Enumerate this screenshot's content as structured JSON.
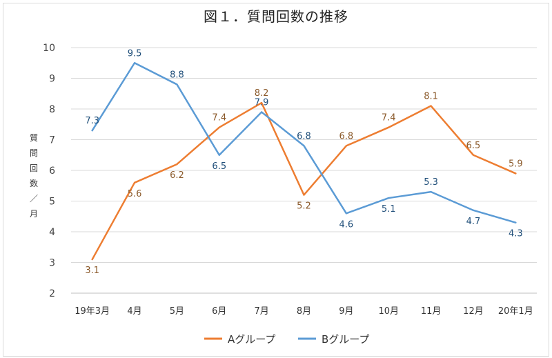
{
  "chart_data": {
    "type": "line",
    "title": "図１．質問回数の推移",
    "xlabel": "",
    "ylabel": [
      "質",
      "問",
      "回",
      "数",
      "／",
      "月"
    ],
    "ylim": [
      2,
      10
    ],
    "yticks": [
      "2",
      "3",
      "4",
      "5",
      "6",
      "7",
      "8",
      "9",
      "10"
    ],
    "categories": [
      "19年3月",
      "4月",
      "5月",
      "6月",
      "7月",
      "8月",
      "9月",
      "10月",
      "11月",
      "12月",
      "20年1月"
    ],
    "series": [
      {
        "name": "Aグループ",
        "color": "#ED7D31",
        "label_color": "#8B5A2B",
        "values": [
          3.1,
          5.6,
          6.2,
          7.4,
          8.2,
          5.2,
          6.8,
          7.4,
          8.1,
          6.5,
          5.9
        ],
        "labels": [
          "3.1",
          "5.6",
          "6.2",
          "7.4",
          "8.2",
          "5.2",
          "6.8",
          "7.4",
          "8.1",
          "6.5",
          "5.9"
        ]
      },
      {
        "name": "Bグループ",
        "color": "#5B9BD5",
        "label_color": "#1F4E79",
        "values": [
          7.3,
          9.5,
          8.8,
          6.5,
          7.9,
          6.8,
          4.6,
          5.1,
          5.3,
          4.7,
          4.3
        ],
        "labels": [
          "7.3",
          "9.5",
          "8.8",
          "6.5",
          "7.9",
          "6.8",
          "4.6",
          "5.1",
          "5.3",
          "4.7",
          "4.3"
        ]
      }
    ],
    "grid": true,
    "legend": "bottom"
  }
}
